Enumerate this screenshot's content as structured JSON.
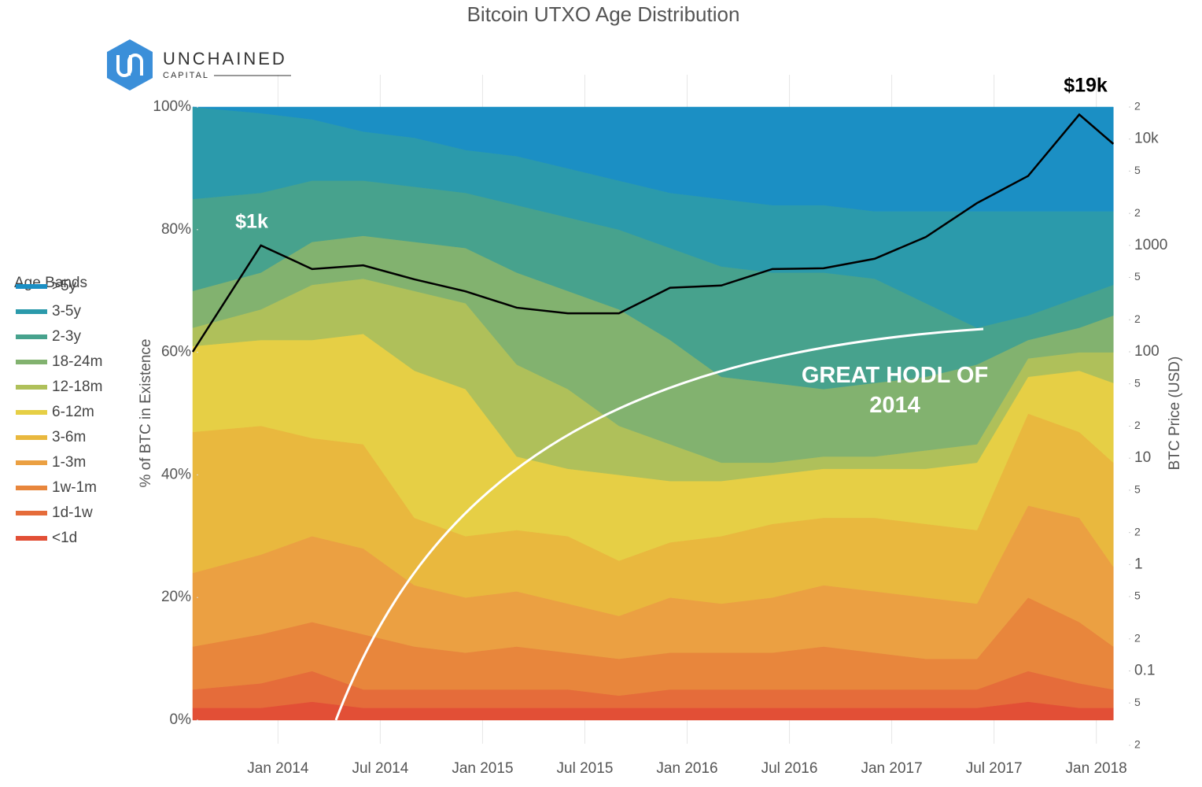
{
  "logo": [
    "UNCHAINED",
    "CAPITAL"
  ],
  "chart_data": {
    "type": "stacked_area",
    "title": "Bitcoin UTXO Age Distribution",
    "y_label": "% of BTC in Existence",
    "y2_label": "BTC Price (USD)",
    "legend_title": "Age Bands",
    "legend_position": "left",
    "grid": true,
    "y2scale": "log",
    "annotations": [
      "$1k",
      "$19k",
      "GREAT HODL OF 2014"
    ],
    "x": [
      "2013-08",
      "2013-12",
      "2014-03",
      "2014-06",
      "2014-09",
      "2014-12",
      "2015-03",
      "2015-06",
      "2015-09",
      "2015-12",
      "2016-03",
      "2016-06",
      "2016-09",
      "2016-12",
      "2017-03",
      "2017-06",
      "2017-09",
      "2017-12",
      "2018-02"
    ],
    "xlim": [
      "2013-08",
      "2018-03"
    ],
    "xticks": [
      {
        "value": "2014-01",
        "label": "Jan 2014"
      },
      {
        "value": "2014-07",
        "label": "Jul 2014"
      },
      {
        "value": "2015-01",
        "label": "Jan 2015"
      },
      {
        "value": "2015-07",
        "label": "Jul 2015"
      },
      {
        "value": "2016-01",
        "label": "Jan 2016"
      },
      {
        "value": "2016-07",
        "label": "Jul 2016"
      },
      {
        "value": "2017-01",
        "label": "Jan 2017"
      },
      {
        "value": "2017-07",
        "label": "Jul 2017"
      },
      {
        "value": "2018-01",
        "label": "Jan 2018"
      }
    ],
    "ylim": [
      0,
      100
    ],
    "yticks": [
      {
        "value": 0,
        "label": "0%"
      },
      {
        "value": 20,
        "label": "20%"
      },
      {
        "value": 40,
        "label": "40%"
      },
      {
        "value": 60,
        "label": "60%"
      },
      {
        "value": 80,
        "label": "80%"
      },
      {
        "value": 100,
        "label": "100%"
      }
    ],
    "y2lim": [
      0.02,
      20000
    ],
    "y2ticks": [
      {
        "value": 20000,
        "label": "2"
      },
      {
        "value": 10000,
        "label": "10k"
      },
      {
        "value": 5000,
        "label": "5"
      },
      {
        "value": 2000,
        "label": "2"
      },
      1000,
      {
        "value": 500,
        "label": "5"
      },
      {
        "value": 200,
        "label": "2"
      },
      100,
      {
        "value": 50,
        "label": "5"
      },
      {
        "value": 20,
        "label": "2"
      },
      10,
      5,
      2,
      1,
      {
        "value": 0.5,
        "label": "5"
      },
      {
        "value": 0.2,
        "label": "2"
      },
      0.1,
      {
        "value": 0.05,
        "label": "5"
      },
      {
        "value": 0.02,
        "label": "2"
      }
    ],
    "series": [
      {
        "name": ">5y",
        "color": "#1b8fc4",
        "values": [
          0,
          1,
          2,
          4,
          5,
          7,
          8,
          10,
          12,
          14,
          15,
          16,
          16,
          17,
          17,
          17,
          17,
          17,
          17
        ]
      },
      {
        "name": "3-5y",
        "color": "#2b9aab",
        "values": [
          15,
          13,
          10,
          8,
          8,
          7,
          8,
          8,
          8,
          9,
          11,
          11,
          11,
          11,
          15,
          19,
          17,
          14,
          12
        ]
      },
      {
        "name": "2-3y",
        "color": "#47a28d",
        "values": [
          15,
          13,
          10,
          9,
          9,
          9,
          11,
          12,
          13,
          15,
          18,
          18,
          19,
          17,
          12,
          6,
          4,
          5,
          5
        ]
      },
      {
        "name": "18-24m",
        "color": "#82b26f",
        "values": [
          6,
          6,
          7,
          7,
          8,
          9,
          15,
          16,
          19,
          17,
          14,
          13,
          11,
          12,
          12,
          13,
          3,
          4,
          6
        ]
      },
      {
        "name": "12-18m",
        "color": "#afc05a",
        "values": [
          3,
          5,
          9,
          9,
          13,
          14,
          15,
          13,
          8,
          6,
          3,
          2,
          2,
          2,
          3,
          3,
          3,
          3,
          5
        ]
      },
      {
        "name": "6-12m",
        "color": "#e6cf45",
        "values": [
          14,
          14,
          16,
          18,
          24,
          24,
          12,
          11,
          14,
          10,
          9,
          8,
          8,
          8,
          9,
          11,
          6,
          10,
          13
        ]
      },
      {
        "name": "3-6m",
        "color": "#e9b83e",
        "values": [
          23,
          21,
          16,
          17,
          11,
          10,
          10,
          11,
          9,
          9,
          11,
          12,
          11,
          12,
          12,
          12,
          15,
          14,
          17
        ]
      },
      {
        "name": "1-3m",
        "color": "#eba042",
        "values": [
          12,
          13,
          14,
          14,
          10,
          9,
          9,
          8,
          7,
          9,
          8,
          9,
          10,
          10,
          10,
          9,
          15,
          17,
          13
        ]
      },
      {
        "name": "1w-1m",
        "color": "#e8863c",
        "values": [
          7,
          8,
          8,
          9,
          7,
          6,
          7,
          6,
          6,
          6,
          6,
          6,
          7,
          6,
          5,
          5,
          12,
          10,
          7
        ]
      },
      {
        "name": "1d-1w",
        "color": "#e56c3a",
        "values": [
          3,
          4,
          5,
          3,
          3,
          3,
          3,
          3,
          2,
          3,
          3,
          3,
          3,
          3,
          3,
          3,
          5,
          4,
          3
        ]
      },
      {
        "name": "<1d",
        "color": "#e24f36",
        "values": [
          2,
          2,
          3,
          2,
          2,
          2,
          2,
          2,
          2,
          2,
          2,
          2,
          2,
          2,
          2,
          2,
          3,
          2,
          2
        ]
      },
      {
        "color": "#000000",
        "axis": "y2",
        "values": [
          100,
          1000,
          600,
          650,
          480,
          370,
          260,
          230,
          230,
          400,
          420,
          600,
          610,
          750,
          1200,
          2500,
          4500,
          17000,
          9000
        ]
      }
    ]
  }
}
